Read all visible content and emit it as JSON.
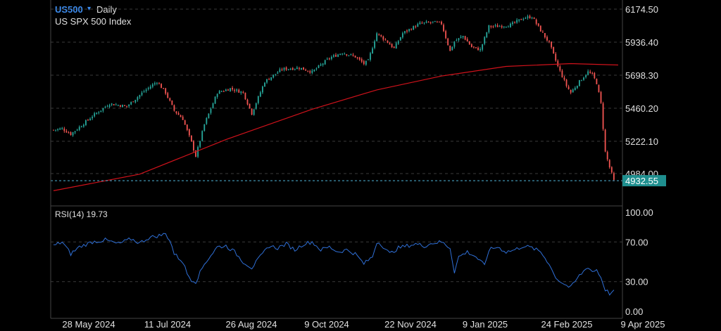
{
  "header": {
    "symbol": "US500",
    "dropdown_glyph": "▾",
    "timeframe": "Daily",
    "description": "US SPX 500 Index"
  },
  "colors": {
    "up": "#26a69a",
    "down": "#ef5350",
    "ma": "#d0121b",
    "rsi": "#2f6fd6",
    "price_line": "#4fb4d8",
    "price_tag": "#1f8f8f",
    "grid": "#3a3a3a",
    "axis": "#444444",
    "text": "#e0e0e0"
  },
  "price_panel": {
    "ticks": [
      "6174.50",
      "5936.40",
      "5698.30",
      "5460.20",
      "5222.10",
      "4984.00"
    ],
    "current_price": "4932.55"
  },
  "rsi_panel": {
    "label": "RSI(14) 19.73",
    "ticks": [
      "100.00",
      "70.00",
      "30.00",
      "0.00"
    ]
  },
  "x_axis": {
    "labels": [
      "28 May 2024",
      "11 Jul 2024",
      "26 Aug 2024",
      "9 Oct 2024",
      "22 Nov 2024",
      "9 Jan 2025",
      "24 Feb 2025",
      "9 Apr 2025"
    ]
  },
  "chart_data": [
    {
      "type": "candlestick",
      "title": "US SPX 500 Index",
      "timeframe": "Daily",
      "x_labels": [
        "28 May 2024",
        "11 Jul 2024",
        "26 Aug 2024",
        "9 Oct 2024",
        "22 Nov 2024",
        "9 Jan 2025",
        "24 Feb 2025",
        "9 Apr 2025"
      ],
      "ylim": [
        4850,
        6200
      ],
      "y_ticks": [
        6174.5,
        5936.4,
        5698.3,
        5460.2,
        5222.1,
        4984.0
      ],
      "approx_close_path": [
        [
          0,
          5300
        ],
        [
          4,
          5310
        ],
        [
          8,
          5270
        ],
        [
          12,
          5320
        ],
        [
          18,
          5400
        ],
        [
          26,
          5490
        ],
        [
          34,
          5470
        ],
        [
          42,
          5580
        ],
        [
          48,
          5650
        ],
        [
          52,
          5570
        ],
        [
          56,
          5440
        ],
        [
          60,
          5380
        ],
        [
          64,
          5210
        ],
        [
          66,
          5110
        ],
        [
          70,
          5340
        ],
        [
          76,
          5570
        ],
        [
          82,
          5600
        ],
        [
          88,
          5570
        ],
        [
          92,
          5420
        ],
        [
          98,
          5650
        ],
        [
          106,
          5740
        ],
        [
          114,
          5750
        ],
        [
          120,
          5720
        ],
        [
          128,
          5820
        ],
        [
          134,
          5860
        ],
        [
          140,
          5830
        ],
        [
          144,
          5780
        ],
        [
          146,
          5800
        ],
        [
          150,
          6000
        ],
        [
          154,
          5950
        ],
        [
          158,
          5890
        ],
        [
          162,
          6000
        ],
        [
          170,
          6070
        ],
        [
          176,
          6080
        ],
        [
          180,
          6070
        ],
        [
          184,
          5870
        ],
        [
          186,
          5940
        ],
        [
          190,
          5980
        ],
        [
          194,
          5900
        ],
        [
          198,
          5880
        ],
        [
          202,
          6050
        ],
        [
          206,
          6050
        ],
        [
          212,
          6060
        ],
        [
          218,
          6110
        ],
        [
          222,
          6120
        ],
        [
          226,
          6020
        ],
        [
          230,
          5930
        ],
        [
          234,
          5760
        ],
        [
          238,
          5620
        ],
        [
          240,
          5570
        ],
        [
          244,
          5650
        ],
        [
          248,
          5720
        ],
        [
          250,
          5700
        ],
        [
          252,
          5640
        ],
        [
          254,
          5490
        ],
        [
          256,
          5140
        ],
        [
          258,
          5030
        ],
        [
          260,
          4932.55
        ]
      ],
      "series": [
        {
          "name": "",
          "type": "moving-average",
          "points": [
            [
              0,
              4860
            ],
            [
              40,
              4980
            ],
            [
              80,
              5230
            ],
            [
              120,
              5450
            ],
            [
              150,
              5590
            ],
            [
              180,
              5690
            ],
            [
              210,
              5760
            ],
            [
              240,
              5780
            ],
            [
              262,
              5770
            ]
          ]
        }
      ],
      "current_price": 4932.55
    },
    {
      "type": "line",
      "title": "RSI(14) 19.73",
      "ylim": [
        0,
        100
      ],
      "y_ticks": [
        100,
        70,
        30,
        0
      ],
      "reference_lines": [
        70,
        30
      ],
      "series": [
        {
          "name": "",
          "points": [
            [
              0,
              66
            ],
            [
              4,
              70
            ],
            [
              8,
              58
            ],
            [
              12,
              65
            ],
            [
              18,
              70
            ],
            [
              24,
              72
            ],
            [
              30,
              68
            ],
            [
              36,
              73
            ],
            [
              40,
              69
            ],
            [
              44,
              74
            ],
            [
              48,
              76
            ],
            [
              52,
              78
            ],
            [
              54,
              72
            ],
            [
              56,
              58
            ],
            [
              60,
              50
            ],
            [
              62,
              38
            ],
            [
              64,
              32
            ],
            [
              66,
              30
            ],
            [
              70,
              48
            ],
            [
              76,
              65
            ],
            [
              80,
              66
            ],
            [
              84,
              60
            ],
            [
              88,
              50
            ],
            [
              92,
              44
            ],
            [
              96,
              55
            ],
            [
              100,
              66
            ],
            [
              104,
              64
            ],
            [
              108,
              68
            ],
            [
              112,
              62
            ],
            [
              116,
              68
            ],
            [
              120,
              70
            ],
            [
              124,
              62
            ],
            [
              128,
              65
            ],
            [
              132,
              60
            ],
            [
              136,
              62
            ],
            [
              140,
              58
            ],
            [
              144,
              48
            ],
            [
              148,
              55
            ],
            [
              150,
              70
            ],
            [
              152,
              68
            ],
            [
              156,
              58
            ],
            [
              160,
              64
            ],
            [
              164,
              66
            ],
            [
              168,
              68
            ],
            [
              172,
              66
            ],
            [
              176,
              69
            ],
            [
              180,
              70
            ],
            [
              184,
              64
            ],
            [
              186,
              40
            ],
            [
              188,
              55
            ],
            [
              192,
              60
            ],
            [
              196,
              55
            ],
            [
              200,
              46
            ],
            [
              202,
              62
            ],
            [
              206,
              65
            ],
            [
              210,
              60
            ],
            [
              214,
              62
            ],
            [
              218,
              66
            ],
            [
              222,
              64
            ],
            [
              226,
              60
            ],
            [
              230,
              48
            ],
            [
              232,
              38
            ],
            [
              234,
              32
            ],
            [
              238,
              26
            ],
            [
              240,
              24
            ],
            [
              244,
              36
            ],
            [
              248,
              45
            ],
            [
              250,
              40
            ],
            [
              252,
              42
            ],
            [
              254,
              34
            ],
            [
              256,
              22
            ],
            [
              258,
              18
            ],
            [
              260,
              19.73
            ]
          ]
        }
      ]
    }
  ]
}
